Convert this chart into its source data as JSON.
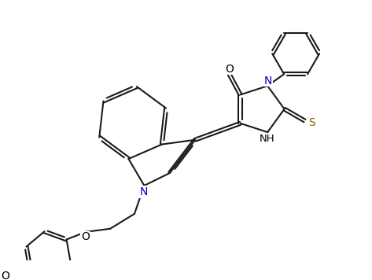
{
  "background_color": "#ffffff",
  "line_color": "#1a1a1a",
  "bond_width": 1.5,
  "figsize": [
    4.73,
    3.56
  ],
  "dpi": 100,
  "atom_colors": {
    "O": "#000000",
    "N": "#0000cd",
    "S": "#8b6400",
    "H": "#000000"
  }
}
